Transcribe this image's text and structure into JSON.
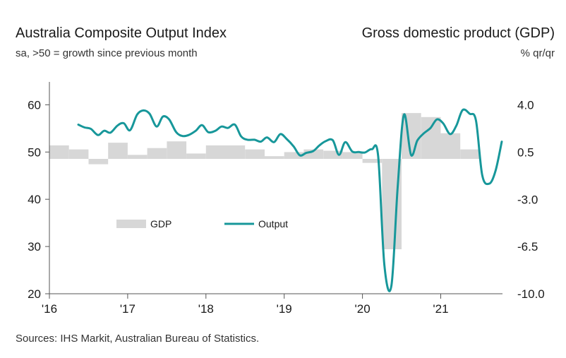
{
  "header": {
    "left_title": "Australia Composite Output Index",
    "left_subtitle": "sa, >50 = growth since previous month",
    "right_title": "Gross domestic product (GDP)",
    "right_subtitle": "% qr/qr"
  },
  "footer": {
    "source": "Sources: IHS Markit, Australian Bureau of Statistics."
  },
  "colors": {
    "output_line": "#17979a",
    "gdp_bars": "#d7d7d7",
    "axis": "#555555"
  },
  "chart_data": {
    "type": "line",
    "title": "Australia Composite Output Index",
    "x_tick_labels": [
      "'16",
      "'17",
      "'18",
      "'19",
      "'20",
      "'21"
    ],
    "x_tick_years": [
      2016,
      2017,
      2018,
      2019,
      2020,
      2021
    ],
    "xlim": [
      2016.0,
      2021.8
    ],
    "y_left": {
      "ylim": [
        20,
        65
      ],
      "ticks": [
        20,
        30,
        40,
        50,
        60
      ]
    },
    "y_right": {
      "ylim": [
        -10.0,
        5.0
      ],
      "ticks": [
        -10.0,
        -6.5,
        -3.0,
        0.5,
        4.0
      ],
      "tick_labels": [
        "-10.0",
        "-6.5",
        "-3.0",
        "0.5",
        "4.0"
      ]
    },
    "legend": {
      "position": "center-left",
      "entries": [
        "GDP",
        "Output"
      ]
    },
    "series": [
      {
        "name": "Output",
        "axis": "left",
        "x": [
          2016.37,
          2016.45,
          2016.53,
          2016.62,
          2016.7,
          2016.78,
          2016.87,
          2016.95,
          2017.03,
          2017.12,
          2017.2,
          2017.28,
          2017.37,
          2017.45,
          2017.53,
          2017.62,
          2017.7,
          2017.78,
          2017.87,
          2017.95,
          2018.03,
          2018.12,
          2018.2,
          2018.28,
          2018.37,
          2018.45,
          2018.53,
          2018.62,
          2018.7,
          2018.78,
          2018.87,
          2018.95,
          2019.03,
          2019.12,
          2019.2,
          2019.28,
          2019.37,
          2019.45,
          2019.53,
          2019.62,
          2019.7,
          2019.78,
          2019.87,
          2019.95,
          2020.03,
          2020.12,
          2020.2,
          2020.28,
          2020.37,
          2020.45,
          2020.53,
          2020.62,
          2020.7,
          2020.78,
          2020.87,
          2020.95,
          2021.03,
          2021.12,
          2021.2,
          2021.28,
          2021.37,
          2021.45,
          2021.53,
          2021.62,
          2021.7,
          2021.78
        ],
        "values": [
          55.8,
          55.2,
          54.9,
          53.6,
          54.5,
          54.1,
          55.6,
          56.1,
          54.6,
          57.9,
          58.8,
          58.1,
          55.4,
          57.5,
          56.9,
          54.2,
          53.4,
          53.6,
          54.5,
          55.7,
          54.2,
          54.5,
          55.4,
          55.1,
          55.8,
          53.3,
          52.6,
          52.6,
          52.2,
          53.1,
          52.1,
          53.8,
          52.8,
          51.2,
          49.3,
          49.8,
          50.2,
          51.4,
          52.3,
          52.5,
          49.4,
          52.1,
          50.1,
          50.0,
          49.9,
          50.6,
          49.2,
          26.0,
          21.7,
          42.6,
          57.9,
          49.4,
          52.4,
          53.9,
          55.1,
          56.9,
          56.1,
          53.8,
          55.6,
          58.9,
          58.1,
          56.7,
          45.1,
          43.3,
          46.0,
          52.2
        ]
      },
      {
        "name": "GDP",
        "axis": "right",
        "type": "bar",
        "bars": [
          {
            "start": 2016.0,
            "end": 2016.25,
            "value": 1.0
          },
          {
            "start": 2016.25,
            "end": 2016.5,
            "value": 0.7
          },
          {
            "start": 2016.5,
            "end": 2016.75,
            "value": -0.4
          },
          {
            "start": 2016.75,
            "end": 2017.0,
            "value": 1.2
          },
          {
            "start": 2017.0,
            "end": 2017.25,
            "value": 0.3
          },
          {
            "start": 2017.25,
            "end": 2017.5,
            "value": 0.8
          },
          {
            "start": 2017.5,
            "end": 2017.75,
            "value": 1.3
          },
          {
            "start": 2017.75,
            "end": 2018.0,
            "value": 0.4
          },
          {
            "start": 2018.0,
            "end": 2018.25,
            "value": 1.0
          },
          {
            "start": 2018.25,
            "end": 2018.5,
            "value": 1.0
          },
          {
            "start": 2018.5,
            "end": 2018.75,
            "value": 0.7
          },
          {
            "start": 2018.75,
            "end": 2019.0,
            "value": 0.2
          },
          {
            "start": 2019.0,
            "end": 2019.25,
            "value": 0.5
          },
          {
            "start": 2019.25,
            "end": 2019.5,
            "value": 0.7
          },
          {
            "start": 2019.5,
            "end": 2019.75,
            "value": 0.6
          },
          {
            "start": 2019.75,
            "end": 2020.0,
            "value": 0.5
          },
          {
            "start": 2020.0,
            "end": 2020.25,
            "value": -0.3
          },
          {
            "start": 2020.25,
            "end": 2020.5,
            "value": -6.7
          },
          {
            "start": 2020.5,
            "end": 2020.75,
            "value": 3.4
          },
          {
            "start": 2020.75,
            "end": 2021.0,
            "value": 3.1
          },
          {
            "start": 2021.0,
            "end": 2021.25,
            "value": 1.9
          },
          {
            "start": 2021.25,
            "end": 2021.5,
            "value": 0.7
          }
        ]
      }
    ]
  }
}
